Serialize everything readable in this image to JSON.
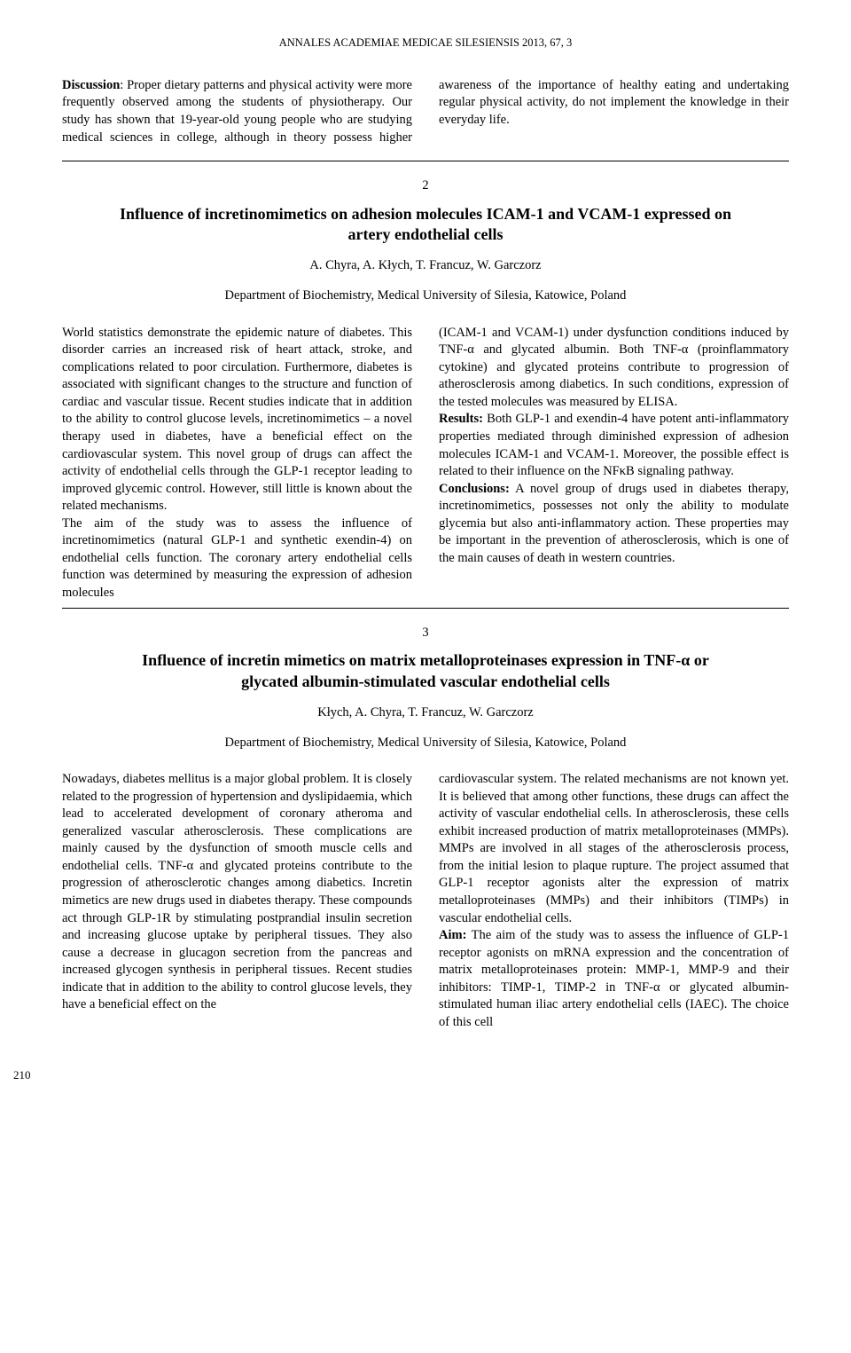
{
  "runningHeader": "ANNALES ACADEMIAE MEDICAE SILESIENSIS 2013, 67, 3",
  "abstract1": {
    "discussionLabel": "Discussion",
    "col1": ": Proper dietary patterns and physical activity were more frequently observed among the students of physiotherapy. Our study has shown that 19-year-old young people who are studying medical",
    "col2": "sciences in college, although in theory possess higher awareness of the importance of healthy eating and undertaking regular physical activity, do not implement the knowledge in their everyday life."
  },
  "article2": {
    "number": "2",
    "title": "Influence of incretinomimetics on adhesion molecules ICAM-1 and VCAM-1 expressed on artery endothelial cells",
    "authors": "A. Chyra, A. Kłych, T. Francuz, W. Garczorz",
    "affiliation": "Department of Biochemistry, Medical University of Silesia, Katowice, Poland",
    "body": {
      "p1": "World statistics demonstrate the epidemic nature of diabetes. This disorder carries an increased risk of heart attack, stroke, and complications related to poor circulation. Furthermore, diabetes is associated with significant changes to the structure and function of cardiac and vascular tissue. Recent studies indicate that in addition to the ability to control glucose levels, incretinomimetics – a novel therapy used in diabetes, have a beneficial effect on the cardiovascular system. This novel group of drugs can affect the activity of endothelial cells through the GLP-1 receptor leading to improved glycemic control. However, still little is known about the related mechanisms.",
      "p2": "The aim of the study was to assess the influence of incretinomimetics (natural GLP-1 and synthetic exendin-4) on endothelial cells function. The coronary artery endothelial cells function was determined by measuring the expression of adhesion molecules",
      "p3": "(ICAM-1 and VCAM-1) under dysfunction conditions induced by TNF-α and glycated albumin. Both TNF-α (proinflammatory cytokine) and glycated proteins contribute to progression of atherosclerosis among diabetics. In such conditions, expression of the tested molecules was measured by ELISA.",
      "resultsLabel": "Results:",
      "p4": " Both GLP-1 and exendin-4 have potent anti-inflammatory properties mediated through diminished expression of adhesion molecules ICAM-1 and VCAM-1. Moreover, the possible effect is related to their influence on the NFκB signaling pathway.",
      "conclusionsLabel": "Conclusions:",
      "p5": " A novel group of drugs used in diabetes therapy, incretinomimetics, possesses not only the ability to modulate glycemia but also anti-inflammatory action. These properties may be important in the prevention of atherosclerosis, which is one of the main causes of death in western countries."
    }
  },
  "article3": {
    "number": "3",
    "title": "Influence of incretin mimetics on matrix metalloproteinases expression in TNF-α or glycated albumin-stimulated vascular endothelial cells",
    "authors": "Kłych, A. Chyra, T. Francuz, W. Garczorz",
    "affiliation": "Department of Biochemistry, Medical University of Silesia, Katowice, Poland",
    "body": {
      "p1": "Nowadays, diabetes mellitus is a major global problem. It is closely related to the progression of hypertension and dyslipidaemia, which lead to accelerated development of coronary atheroma and generalized vascular atherosclerosis. These complications are mainly caused by the dysfunction of smooth muscle cells and endothelial cells. TNF-α and glycated proteins contribute to the progression of atherosclerotic changes among diabetics. Incretin mimetics are new drugs used in diabetes therapy. These compounds act through GLP-1R by stimulating postprandial insulin secretion and increasing glucose uptake by peripheral tissues. They also cause a decrease in glucagon secretion from the pancreas and increased glycogen synthesis in peripheral tissues. Recent studies indicate that in addition to the ability to control glucose levels, they have a beneficial effect on the",
      "p2": "cardiovascular system. The related mechanisms are not known yet. It is believed that among other functions, these drugs can affect the activity of vascular endothelial cells. In atherosclerosis, these cells exhibit increased production of matrix metalloproteinases (MMPs). MMPs are involved in all stages of the atherosclerosis process, from the initial lesion to plaque rupture. The project assumed that GLP-1 receptor agonists alter the expression of matrix metalloproteinases (MMPs) and their inhibitors (TIMPs) in vascular endothelial cells.",
      "aimLabel": "Aim:",
      "p3": " The aim of the study was to assess the influence of GLP-1 receptor agonists on mRNA expression and the concentration of matrix metalloproteinases protein: MMP-1, MMP-9 and their inhibitors: TIMP-1, TIMP-2 in TNF-α or glycated albumin-stimulated human iliac artery endothelial cells (IAEC). The choice of this cell"
    }
  },
  "pageNumber": "210"
}
